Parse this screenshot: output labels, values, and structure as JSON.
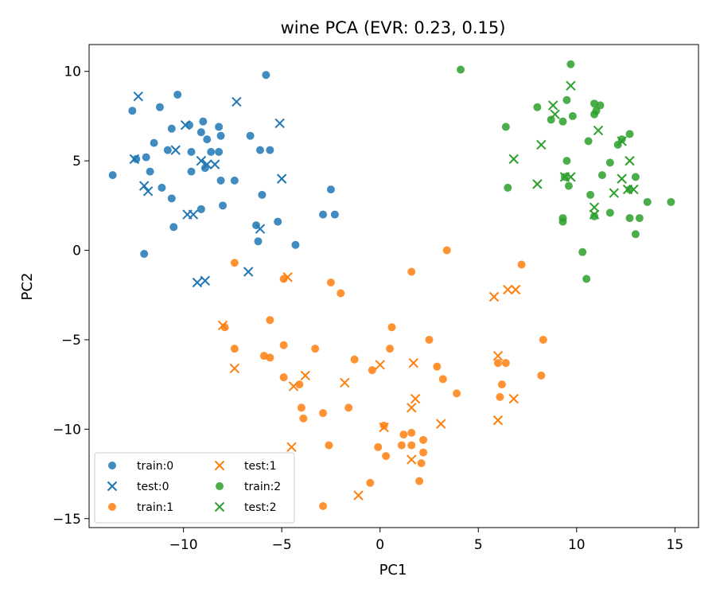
{
  "chart_data": {
    "type": "scatter",
    "title": "wine  PCA (EVR: 0.23, 0.15)",
    "xlabel": "PC1",
    "ylabel": "PC2",
    "xlim": [
      -14.8,
      16.2
    ],
    "ylim": [
      -15.5,
      11.5
    ],
    "xticks": [
      -10,
      -5,
      0,
      5,
      10,
      15
    ],
    "yticks": [
      -15,
      -10,
      -5,
      0,
      5,
      10
    ],
    "grid": false,
    "legend_position": "lower-left",
    "legend_columns": 2,
    "series": [
      {
        "name": "train:0",
        "marker": "circle",
        "color": "#1f77b4",
        "points": [
          [
            -12.6,
            7.8
          ],
          [
            -11.2,
            8.0
          ],
          [
            -10.3,
            8.7
          ],
          [
            -5.8,
            9.8
          ],
          [
            -10.6,
            6.8
          ],
          [
            -9.7,
            7.0
          ],
          [
            -9.0,
            7.2
          ],
          [
            -8.2,
            6.9
          ],
          [
            -9.1,
            6.6
          ],
          [
            -8.8,
            6.2
          ],
          [
            -8.1,
            6.4
          ],
          [
            -6.6,
            6.4
          ],
          [
            -11.5,
            6.0
          ],
          [
            -10.8,
            5.6
          ],
          [
            -11.9,
            5.2
          ],
          [
            -12.4,
            5.1
          ],
          [
            -9.6,
            5.5
          ],
          [
            -8.6,
            5.5
          ],
          [
            -8.2,
            5.5
          ],
          [
            -6.1,
            5.6
          ],
          [
            -5.6,
            5.6
          ],
          [
            -8.9,
            4.6
          ],
          [
            -9.6,
            4.4
          ],
          [
            -11.7,
            4.4
          ],
          [
            -13.6,
            4.2
          ],
          [
            -8.1,
            3.9
          ],
          [
            -7.4,
            3.9
          ],
          [
            -11.1,
            3.5
          ],
          [
            -6.0,
            3.1
          ],
          [
            -10.6,
            2.9
          ],
          [
            -8.0,
            2.5
          ],
          [
            -9.1,
            2.3
          ],
          [
            -2.5,
            3.4
          ],
          [
            -2.9,
            2.0
          ],
          [
            -2.3,
            2.0
          ],
          [
            -5.2,
            1.6
          ],
          [
            -6.3,
            1.4
          ],
          [
            -10.5,
            1.3
          ],
          [
            -6.2,
            0.5
          ],
          [
            -4.3,
            0.3
          ],
          [
            -12.0,
            -0.2
          ]
        ]
      },
      {
        "name": "test:0",
        "marker": "x",
        "color": "#1f77b4",
        "points": [
          [
            -12.3,
            8.6
          ],
          [
            -7.3,
            8.3
          ],
          [
            -5.1,
            7.1
          ],
          [
            -9.9,
            7.0
          ],
          [
            -12.5,
            5.1
          ],
          [
            -10.4,
            5.6
          ],
          [
            -9.1,
            5.0
          ],
          [
            -8.8,
            4.8
          ],
          [
            -8.4,
            4.8
          ],
          [
            -5.0,
            4.0
          ],
          [
            -12.0,
            3.6
          ],
          [
            -11.8,
            3.3
          ],
          [
            -9.8,
            2.0
          ],
          [
            -9.5,
            2.0
          ],
          [
            -6.1,
            1.2
          ],
          [
            -6.7,
            -1.2
          ],
          [
            -9.3,
            -1.8
          ],
          [
            -8.9,
            -1.7
          ]
        ]
      },
      {
        "name": "train:1",
        "marker": "circle",
        "color": "#ff7f0e",
        "points": [
          [
            3.4,
            0.0
          ],
          [
            -7.4,
            -0.7
          ],
          [
            7.2,
            -0.8
          ],
          [
            1.6,
            -1.2
          ],
          [
            -4.9,
            -1.6
          ],
          [
            -2.5,
            -1.8
          ],
          [
            -2.0,
            -2.4
          ],
          [
            -5.6,
            -3.9
          ],
          [
            -7.9,
            -4.3
          ],
          [
            0.6,
            -4.3
          ],
          [
            2.5,
            -5.0
          ],
          [
            8.3,
            -5.0
          ],
          [
            -4.9,
            -5.3
          ],
          [
            -7.4,
            -5.5
          ],
          [
            -3.3,
            -5.5
          ],
          [
            0.5,
            -5.5
          ],
          [
            -5.9,
            -5.9
          ],
          [
            -5.6,
            -6.0
          ],
          [
            -1.3,
            -6.1
          ],
          [
            6.0,
            -6.3
          ],
          [
            6.4,
            -6.3
          ],
          [
            2.9,
            -6.5
          ],
          [
            -0.4,
            -6.7
          ],
          [
            -4.9,
            -7.1
          ],
          [
            3.2,
            -7.2
          ],
          [
            8.2,
            -7.0
          ],
          [
            -4.1,
            -7.5
          ],
          [
            6.2,
            -7.5
          ],
          [
            3.9,
            -8.0
          ],
          [
            -4.0,
            -8.8
          ],
          [
            -1.6,
            -8.8
          ],
          [
            6.1,
            -8.2
          ],
          [
            -2.9,
            -9.1
          ],
          [
            -3.9,
            -9.4
          ],
          [
            0.2,
            -9.8
          ],
          [
            1.2,
            -10.3
          ],
          [
            1.6,
            -10.2
          ],
          [
            -0.1,
            -11.0
          ],
          [
            -2.6,
            -10.9
          ],
          [
            1.1,
            -10.9
          ],
          [
            1.6,
            -10.9
          ],
          [
            2.2,
            -10.6
          ],
          [
            2.2,
            -11.3
          ],
          [
            0.3,
            -11.5
          ],
          [
            2.1,
            -11.9
          ],
          [
            -0.5,
            -13.0
          ],
          [
            2.0,
            -12.9
          ],
          [
            -2.9,
            -14.3
          ]
        ]
      },
      {
        "name": "test:1",
        "marker": "x",
        "color": "#ff7f0e",
        "points": [
          [
            -4.7,
            -1.5
          ],
          [
            6.5,
            -2.2
          ],
          [
            6.9,
            -2.2
          ],
          [
            5.8,
            -2.6
          ],
          [
            -8.0,
            -4.2
          ],
          [
            6.0,
            -5.9
          ],
          [
            -7.4,
            -6.6
          ],
          [
            0.0,
            -6.4
          ],
          [
            1.7,
            -6.3
          ],
          [
            -3.8,
            -7.0
          ],
          [
            -4.4,
            -7.6
          ],
          [
            -1.8,
            -7.4
          ],
          [
            1.8,
            -8.3
          ],
          [
            6.8,
            -8.3
          ],
          [
            1.6,
            -8.8
          ],
          [
            3.1,
            -9.7
          ],
          [
            6.0,
            -9.5
          ],
          [
            0.2,
            -9.9
          ],
          [
            -4.5,
            -11.0
          ],
          [
            1.6,
            -11.7
          ],
          [
            -1.1,
            -13.7
          ]
        ]
      },
      {
        "name": "train:2",
        "marker": "circle",
        "color": "#2ca02c",
        "points": [
          [
            4.1,
            10.1
          ],
          [
            9.7,
            10.4
          ],
          [
            8.0,
            8.0
          ],
          [
            9.5,
            8.4
          ],
          [
            10.9,
            8.2
          ],
          [
            11.2,
            8.1
          ],
          [
            11.0,
            7.8
          ],
          [
            10.9,
            7.6
          ],
          [
            9.8,
            7.5
          ],
          [
            8.7,
            7.3
          ],
          [
            9.3,
            7.2
          ],
          [
            6.4,
            6.9
          ],
          [
            12.7,
            6.5
          ],
          [
            12.3,
            6.2
          ],
          [
            10.6,
            6.1
          ],
          [
            12.1,
            5.9
          ],
          [
            11.7,
            4.9
          ],
          [
            9.5,
            5.0
          ],
          [
            11.3,
            4.2
          ],
          [
            9.4,
            4.1
          ],
          [
            13.0,
            4.1
          ],
          [
            6.5,
            3.5
          ],
          [
            9.6,
            3.6
          ],
          [
            12.7,
            3.4
          ],
          [
            10.7,
            3.1
          ],
          [
            13.6,
            2.7
          ],
          [
            14.8,
            2.7
          ],
          [
            11.7,
            2.1
          ],
          [
            10.9,
            1.9
          ],
          [
            9.3,
            1.8
          ],
          [
            12.7,
            1.8
          ],
          [
            13.2,
            1.8
          ],
          [
            9.3,
            1.6
          ],
          [
            13.0,
            0.9
          ],
          [
            10.3,
            -0.1
          ],
          [
            10.5,
            -1.6
          ]
        ]
      },
      {
        "name": "test:2",
        "marker": "x",
        "color": "#2ca02c",
        "points": [
          [
            9.7,
            9.2
          ],
          [
            8.8,
            8.1
          ],
          [
            8.9,
            7.6
          ],
          [
            11.1,
            6.7
          ],
          [
            12.3,
            6.1
          ],
          [
            8.2,
            5.9
          ],
          [
            6.8,
            5.1
          ],
          [
            12.7,
            5.0
          ],
          [
            9.4,
            4.1
          ],
          [
            9.7,
            4.1
          ],
          [
            12.3,
            4.0
          ],
          [
            8.0,
            3.7
          ],
          [
            12.6,
            3.4
          ],
          [
            12.9,
            3.4
          ],
          [
            11.9,
            3.2
          ],
          [
            10.9,
            2.4
          ],
          [
            10.9,
            2.0
          ]
        ]
      }
    ]
  }
}
